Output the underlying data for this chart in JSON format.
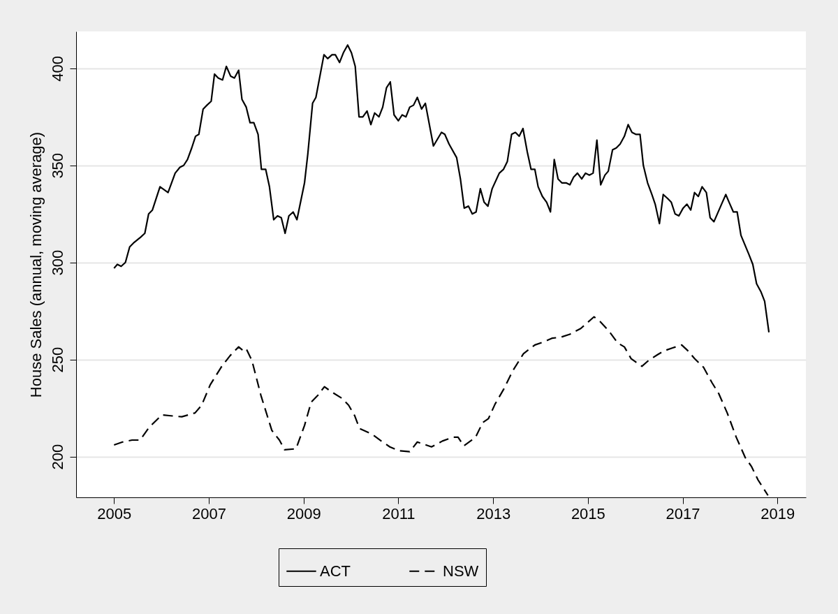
{
  "chart_data": {
    "type": "line",
    "ylabel": "House Sales (annual, moving average)",
    "xlim": [
      2004.2,
      2019.6
    ],
    "xticks": [
      2005,
      2007,
      2009,
      2011,
      2013,
      2015,
      2017,
      2019
    ],
    "ylim": [
      179,
      419
    ],
    "yticks": [
      200,
      250,
      300,
      350,
      400
    ],
    "grid": "y",
    "legend": "bottom",
    "marker": "none",
    "series": [
      {
        "name": "ACT",
        "color": "#000000",
        "line_style": "solid",
        "x": [
          2005.0,
          2005.07,
          2005.15,
          2005.24,
          2005.33,
          2005.41,
          2005.56,
          2005.65,
          2005.73,
          2005.81,
          2005.97,
          2006.14,
          2006.29,
          2006.39,
          2006.47,
          2006.55,
          2006.64,
          2006.72,
          2006.79,
          2006.88,
          2006.96,
          2007.05,
          2007.12,
          2007.2,
          2007.29,
          2007.37,
          2007.46,
          2007.54,
          2007.63,
          2007.7,
          2007.79,
          2007.87,
          2007.95,
          2008.04,
          2008.11,
          2008.2,
          2008.28,
          2008.37,
          2008.45,
          2008.53,
          2008.61,
          2008.69,
          2008.78,
          2008.86,
          2009.02,
          2009.09,
          2009.19,
          2009.26,
          2009.43,
          2009.51,
          2009.6,
          2009.67,
          2009.76,
          2009.84,
          2009.93,
          2010.01,
          2010.09,
          2010.17,
          2010.25,
          2010.34,
          2010.42,
          2010.5,
          2010.59,
          2010.67,
          2010.75,
          2010.83,
          2010.91,
          2011.0,
          2011.08,
          2011.16,
          2011.24,
          2011.32,
          2011.4,
          2011.49,
          2011.57,
          2011.74,
          2011.91,
          2011.98,
          2012.07,
          2012.23,
          2012.31,
          2012.39,
          2012.48,
          2012.56,
          2012.64,
          2012.73,
          2012.81,
          2012.89,
          2012.98,
          2013.13,
          2013.22,
          2013.3,
          2013.39,
          2013.47,
          2013.55,
          2013.63,
          2013.72,
          2013.8,
          2013.88,
          2013.95,
          2014.04,
          2014.13,
          2014.21,
          2014.29,
          2014.37,
          2014.45,
          2014.54,
          2014.62,
          2014.7,
          2014.78,
          2014.87,
          2014.95,
          2015.03,
          2015.11,
          2015.19,
          2015.27,
          2015.36,
          2015.43,
          2015.52,
          2015.6,
          2015.68,
          2015.77,
          2015.85,
          2015.93,
          2016.01,
          2016.1,
          2016.17,
          2016.26,
          2016.35,
          2016.42,
          2016.51,
          2016.59,
          2016.68,
          2016.76,
          2016.84,
          2016.92,
          2017.01,
          2017.09,
          2017.17,
          2017.25,
          2017.33,
          2017.41,
          2017.5,
          2017.58,
          2017.66,
          2017.82,
          2017.91,
          2017.98,
          2018.07,
          2018.15,
          2018.23,
          2018.4,
          2018.48,
          2018.56,
          2018.65,
          2018.73,
          2018.82
        ],
        "values": [
          297,
          299,
          298,
          300,
          308,
          310,
          313,
          315,
          325,
          327,
          339,
          336,
          346,
          349,
          350,
          353,
          359,
          365,
          366,
          379,
          381,
          383,
          397,
          395,
          394,
          401,
          396,
          395,
          399,
          384,
          380,
          372,
          372,
          366,
          348,
          348,
          339,
          322,
          324,
          323,
          315,
          324,
          326,
          322,
          341,
          356,
          382,
          385,
          407,
          405,
          407,
          407,
          403,
          408,
          412,
          408,
          401,
          375,
          375,
          378,
          371,
          377,
          375,
          380,
          390,
          393,
          376,
          373,
          376,
          375,
          380,
          381,
          385,
          379,
          382,
          360,
          367,
          366,
          361,
          354,
          343,
          328,
          329,
          325,
          326,
          338,
          331,
          329,
          338,
          346,
          348,
          352,
          366,
          367,
          365,
          369,
          357,
          348,
          348,
          339,
          334,
          331,
          326,
          353,
          343,
          341,
          341,
          340,
          344,
          346,
          343,
          346,
          345,
          346,
          363,
          340,
          345,
          347,
          358,
          359,
          361,
          365,
          371,
          367,
          366,
          366,
          350,
          341,
          335,
          330,
          320,
          335,
          333,
          331,
          325,
          324,
          328,
          330,
          327,
          336,
          334,
          339,
          336,
          323,
          321,
          330,
          335,
          331,
          326,
          326,
          314,
          304,
          299,
          289,
          285,
          280,
          264
        ]
      },
      {
        "name": "NSW",
        "color": "#000000",
        "line_style": "dashed",
        "x": [
          2005.0,
          2005.18,
          2005.38,
          2005.55,
          2005.74,
          2006.01,
          2006.2,
          2006.43,
          2006.71,
          2006.85,
          2007.03,
          2007.26,
          2007.45,
          2007.63,
          2007.73,
          2007.79,
          2007.91,
          2008.1,
          2008.33,
          2008.49,
          2008.6,
          2008.84,
          2009.02,
          2009.16,
          2009.3,
          2009.44,
          2009.58,
          2009.81,
          2009.95,
          2010.08,
          2010.18,
          2010.45,
          2010.64,
          2010.82,
          2011.01,
          2011.24,
          2011.4,
          2011.7,
          2011.93,
          2012.16,
          2012.26,
          2012.38,
          2012.63,
          2012.78,
          2012.9,
          2013.04,
          2013.23,
          2013.41,
          2013.64,
          2013.88,
          2014.06,
          2014.25,
          2014.43,
          2014.62,
          2014.85,
          2014.99,
          2015.13,
          2015.26,
          2015.45,
          2015.63,
          2015.77,
          2015.91,
          2016.14,
          2016.28,
          2016.47,
          2016.61,
          2016.79,
          2016.98,
          2017.11,
          2017.25,
          2017.44,
          2017.62,
          2017.76,
          2017.94,
          2018.13,
          2018.32,
          2018.45,
          2018.59,
          2018.8
        ],
        "values": [
          206,
          207.5,
          208.5,
          208.5,
          215,
          221.5,
          221,
          220.5,
          222.5,
          226.5,
          237,
          246,
          252,
          256.5,
          254.5,
          255.5,
          249.5,
          231.5,
          213.5,
          208.5,
          203.5,
          204,
          216,
          228,
          231.5,
          236,
          233.5,
          230,
          226.5,
          221,
          214.5,
          211.5,
          208,
          205,
          203,
          202.5,
          207.5,
          205,
          208,
          210,
          210,
          205.5,
          210,
          217.5,
          219.5,
          227,
          235,
          244,
          253,
          257.5,
          259,
          261,
          261.5,
          263,
          266,
          269,
          272,
          269.5,
          264.5,
          258.5,
          256.5,
          250.5,
          246.5,
          249.5,
          252.5,
          254.5,
          256,
          257.5,
          254.5,
          250.5,
          246,
          238,
          232.5,
          222.5,
          210,
          199.5,
          195,
          188,
          180
        ]
      }
    ]
  }
}
